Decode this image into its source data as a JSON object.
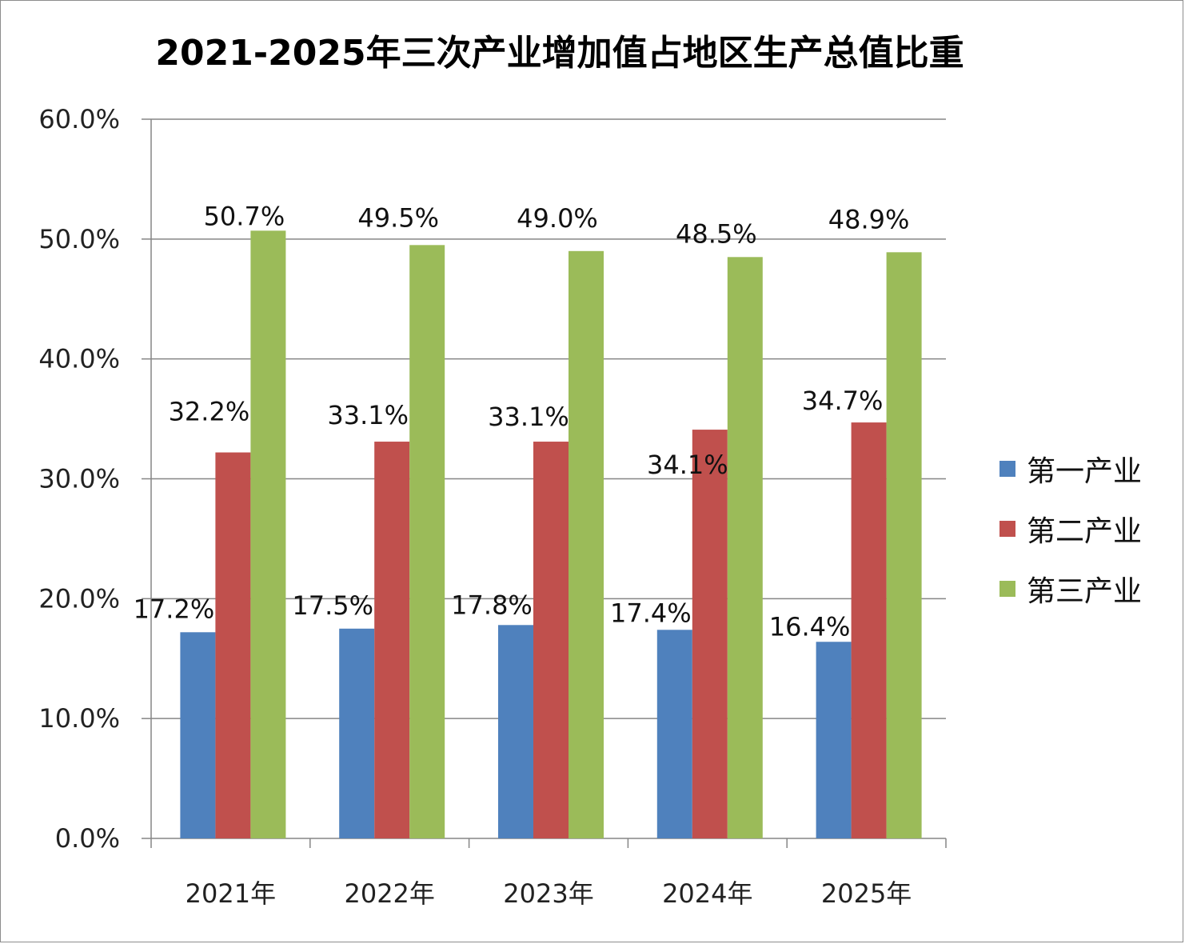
{
  "chart_data": {
    "type": "bar",
    "title": "2021-2025年三次产业增加值占地区生产总值比重",
    "categories": [
      "2021年",
      "2022年",
      "2023年",
      "2024年",
      "2025年"
    ],
    "series": [
      {
        "name": "第一产业",
        "color": "#4f81bd",
        "values": [
          17.2,
          17.5,
          17.8,
          17.4,
          16.4
        ],
        "labels": [
          "17.2%",
          "17.5%",
          "17.8%",
          "17.4%",
          "16.4%"
        ]
      },
      {
        "name": "第二产业",
        "color": "#c0504d",
        "values": [
          32.2,
          33.1,
          33.1,
          34.1,
          34.7
        ],
        "labels": [
          "32.2%",
          "33.1%",
          "33.1%",
          "34.1%",
          "34.7%"
        ]
      },
      {
        "name": "第三产业",
        "color": "#9bbb59",
        "values": [
          50.7,
          49.5,
          49.0,
          48.5,
          48.9
        ],
        "labels": [
          "50.7%",
          "49.5%",
          "49.0%",
          "48.5%",
          "48.9%"
        ]
      }
    ],
    "y_ticks": [
      "0.0%",
      "10.0%",
      "20.0%",
      "30.0%",
      "40.0%",
      "50.0%",
      "60.0%"
    ],
    "ylim": [
      0,
      60
    ],
    "xlabel": "",
    "ylabel": "",
    "grid": true,
    "legend_position": "right"
  }
}
